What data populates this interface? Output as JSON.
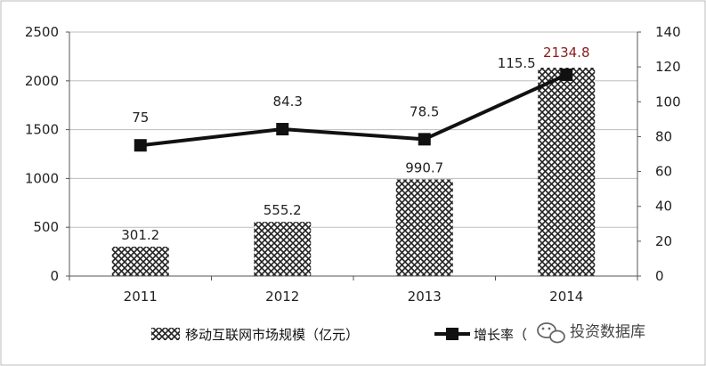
{
  "chart_data": {
    "type": "bar",
    "categories": [
      "2011",
      "2012",
      "2013",
      "2014"
    ],
    "series": [
      {
        "name": "移动互联网市场规模（亿元）",
        "type": "bar",
        "axis": "left",
        "values": [
          301.2,
          555.2,
          990.7,
          2134.8
        ],
        "labels": [
          "301.2",
          "555.2",
          "990.7",
          "2134.8"
        ]
      },
      {
        "name": "增长率（%）",
        "legend_visible_text": "增长率（",
        "type": "line",
        "axis": "right",
        "values": [
          75,
          84.3,
          78.5,
          115.5
        ],
        "labels": [
          "75",
          "84.3",
          "78.5",
          "115.5"
        ]
      }
    ],
    "y_left": {
      "ylim": [
        0,
        2500
      ],
      "ticks": [
        0,
        500,
        1000,
        1500,
        2000,
        2500
      ],
      "tick_labels": [
        "0",
        "500",
        "1000",
        "1500",
        "2000",
        "2500"
      ]
    },
    "y_right": {
      "ylim": [
        0,
        140
      ],
      "ticks": [
        0,
        20,
        40,
        60,
        80,
        100,
        120,
        140
      ],
      "tick_labels": [
        "0",
        "20",
        "40",
        "60",
        "80",
        "100",
        "120",
        "140"
      ]
    },
    "grid": "horizontal",
    "legend": "bottom-center",
    "colors": {
      "bar_pattern": "#222222",
      "line": "#111111",
      "highlight_label": "#8b1a1a"
    }
  },
  "watermark": {
    "text": "投资数据库",
    "icon": "wechat-icon"
  }
}
